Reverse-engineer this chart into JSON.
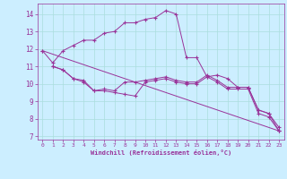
{
  "background_color": "#cceeff",
  "grid_color": "#aadddd",
  "line_color": "#993399",
  "marker": "+",
  "xlabel": "Windchill (Refroidissement éolien,°C)",
  "xlim": [
    -0.5,
    23.5
  ],
  "ylim": [
    6.8,
    14.6
  ],
  "yticks": [
    7,
    8,
    9,
    10,
    11,
    12,
    13,
    14
  ],
  "xticks": [
    0,
    1,
    2,
    3,
    4,
    5,
    6,
    7,
    8,
    9,
    10,
    11,
    12,
    13,
    14,
    15,
    16,
    17,
    18,
    19,
    20,
    21,
    22,
    23
  ],
  "series": [
    {
      "x": [
        0,
        1,
        2,
        3,
        4,
        5,
        6,
        7,
        8,
        9,
        10,
        11,
        12,
        13,
        14,
        15,
        16,
        17,
        18,
        19,
        20,
        21,
        22,
        23
      ],
      "y": [
        11.9,
        11.2,
        11.9,
        12.2,
        12.5,
        12.5,
        12.9,
        13.0,
        13.5,
        13.5,
        13.7,
        13.8,
        14.2,
        14.0,
        11.5,
        11.5,
        10.4,
        10.5,
        10.3,
        9.8,
        9.8,
        8.5,
        8.3,
        7.5
      ]
    },
    {
      "x": [
        1,
        2,
        3,
        4,
        5,
        6,
        7,
        8,
        9,
        10,
        11,
        12,
        13,
        14,
        15,
        16,
        17,
        18,
        19,
        20,
        21,
        22,
        23
      ],
      "y": [
        11.0,
        10.8,
        10.3,
        10.2,
        9.6,
        9.7,
        9.6,
        10.1,
        10.1,
        10.2,
        10.3,
        10.4,
        10.2,
        10.1,
        10.1,
        10.5,
        10.2,
        9.8,
        9.8,
        9.8,
        8.5,
        8.3,
        7.3
      ]
    },
    {
      "x": [
        1,
        2,
        3,
        4,
        5,
        6,
        7,
        8,
        9,
        10,
        11,
        12,
        13,
        14,
        15,
        16,
        17,
        18,
        19,
        20,
        21,
        22,
        23
      ],
      "y": [
        11.0,
        10.8,
        10.3,
        10.1,
        9.6,
        9.6,
        9.5,
        9.4,
        9.3,
        10.1,
        10.2,
        10.3,
        10.1,
        10.0,
        10.0,
        10.4,
        10.1,
        9.7,
        9.7,
        9.7,
        8.3,
        8.1,
        7.3
      ]
    },
    {
      "x": [
        0,
        23
      ],
      "y": [
        11.9,
        7.3
      ]
    }
  ]
}
